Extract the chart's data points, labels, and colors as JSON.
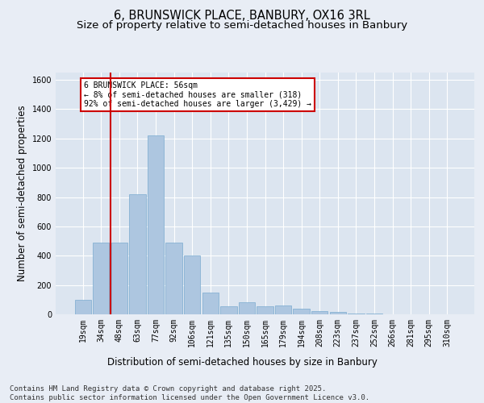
{
  "title1": "6, BRUNSWICK PLACE, BANBURY, OX16 3RL",
  "title2": "Size of property relative to semi-detached houses in Banbury",
  "xlabel": "Distribution of semi-detached houses by size in Banbury",
  "ylabel": "Number of semi-detached properties",
  "categories": [
    "19sqm",
    "34sqm",
    "48sqm",
    "63sqm",
    "77sqm",
    "92sqm",
    "106sqm",
    "121sqm",
    "135sqm",
    "150sqm",
    "165sqm",
    "179sqm",
    "194sqm",
    "208sqm",
    "223sqm",
    "237sqm",
    "252sqm",
    "266sqm",
    "281sqm",
    "295sqm",
    "310sqm"
  ],
  "values": [
    100,
    490,
    490,
    820,
    1220,
    490,
    400,
    150,
    55,
    85,
    55,
    60,
    40,
    20,
    15,
    5,
    5,
    2,
    2,
    1,
    1
  ],
  "bar_color": "#adc6e0",
  "bar_edgecolor": "#7aaad0",
  "vline_x_pos": 1.5,
  "vline_color": "#cc0000",
  "annotation_text": "6 BRUNSWICK PLACE: 56sqm\n← 8% of semi-detached houses are smaller (318)\n92% of semi-detached houses are larger (3,429) →",
  "annotation_box_color": "#ffffff",
  "annotation_box_edgecolor": "#cc0000",
  "footer": "Contains HM Land Registry data © Crown copyright and database right 2025.\nContains public sector information licensed under the Open Government Licence v3.0.",
  "ylim": [
    0,
    1650
  ],
  "yticks": [
    0,
    200,
    400,
    600,
    800,
    1000,
    1200,
    1400,
    1600
  ],
  "background_color": "#e8edf5",
  "plot_background": "#dce5f0",
  "grid_color": "#ffffff",
  "title_fontsize": 10.5,
  "subtitle_fontsize": 9.5,
  "tick_fontsize": 7,
  "label_fontsize": 8.5,
  "footer_fontsize": 6.5
}
